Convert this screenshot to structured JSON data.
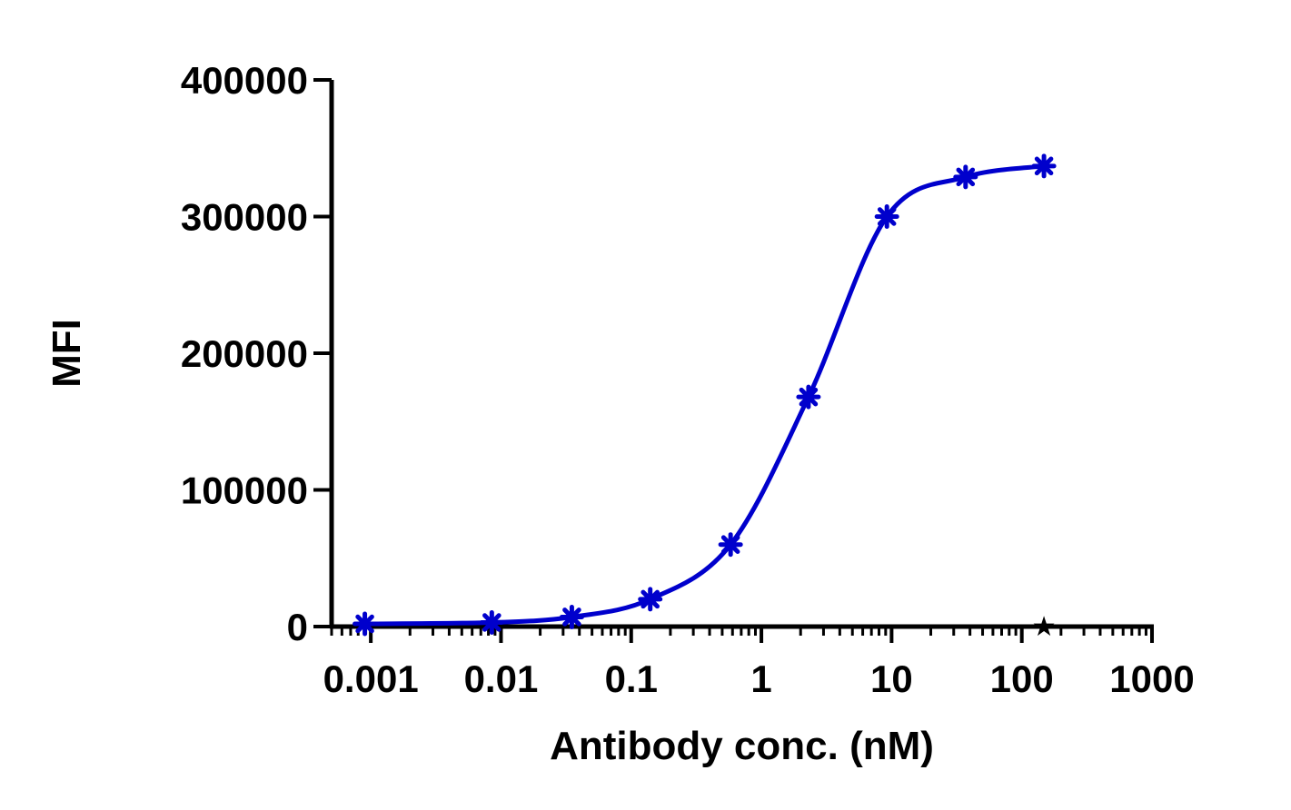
{
  "chart_data": {
    "type": "scatter",
    "title": "",
    "xlabel": "Antibody conc. (nM)",
    "ylabel": "MFI",
    "xscale": "log",
    "xlim": [
      0.0005,
      1000
    ],
    "ylim": [
      0,
      400000
    ],
    "x_ticks": [
      "0.001",
      "0.01",
      "0.1",
      "1",
      "10",
      "100",
      "1000"
    ],
    "y_ticks": [
      "0",
      "100000",
      "200000",
      "300000",
      "400000"
    ],
    "grid": false,
    "legend": "none",
    "series": [
      {
        "color": "#0000cc",
        "marker": "asterisk",
        "fit": "sigmoidal",
        "x": [
          0.0009,
          0.0085,
          0.035,
          0.14,
          0.58,
          2.3,
          9.2,
          37,
          148
        ],
        "y": [
          2000,
          3000,
          7000,
          20000,
          60000,
          168000,
          300000,
          329000,
          337000
        ]
      }
    ],
    "annotations": [
      {
        "symbol": "★",
        "x": 148,
        "y": 0,
        "color": "#000000"
      }
    ]
  }
}
